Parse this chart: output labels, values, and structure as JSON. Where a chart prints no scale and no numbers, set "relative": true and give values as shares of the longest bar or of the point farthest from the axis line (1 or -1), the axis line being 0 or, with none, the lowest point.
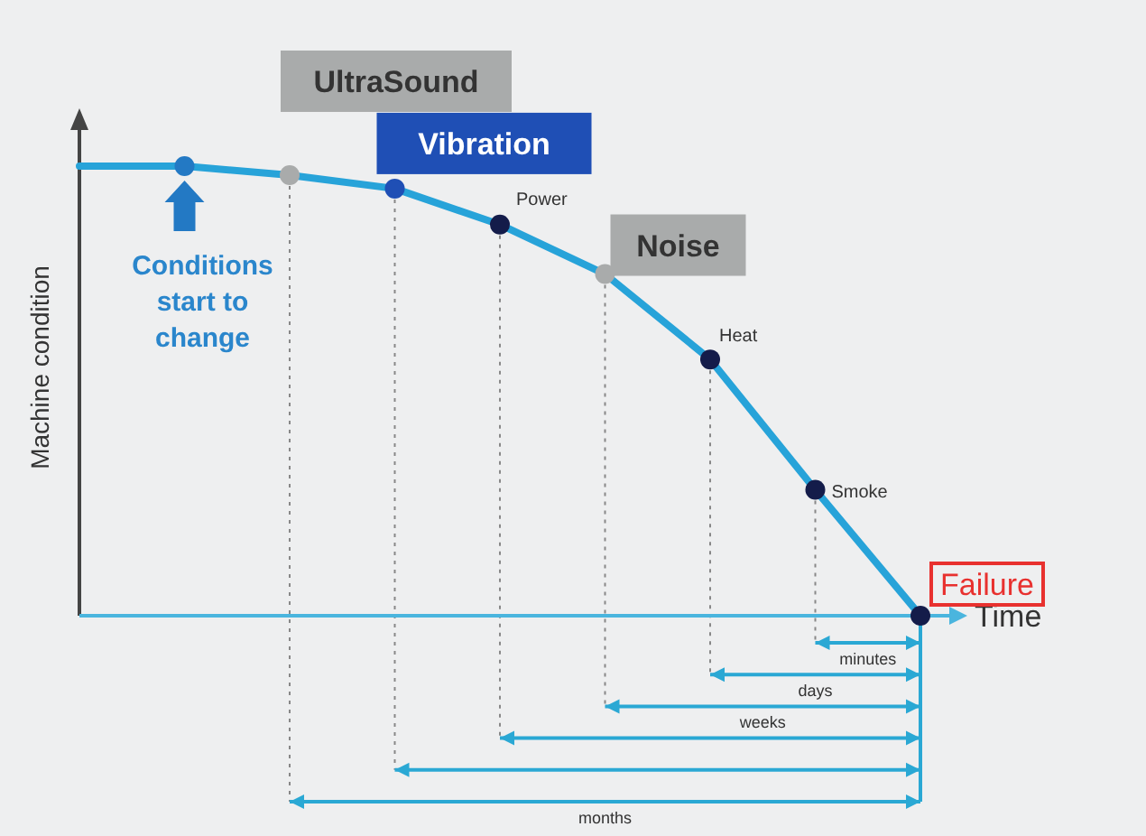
{
  "chart_data": {
    "type": "line",
    "relative": true,
    "xlabel": "Time",
    "ylabel": "Machine condition",
    "categories": [
      null,
      null,
      null,
      null,
      null,
      null,
      null,
      null,
      null
    ],
    "grid": "x",
    "series": [
      {
        "color": "#27a3d9",
        "marker": "circle",
        "line_style": "solid",
        "values": [
          1,
          1,
          0.98,
          0.95,
          0.87,
          0.76,
          0.57,
          0.28,
          0
        ],
        "colors": [
          null,
          "#2379c4",
          "#a9abab",
          "#1f4fb5",
          "#141c4a",
          "#a9abab",
          "#141c4a",
          "#141c4a",
          "#141c4a"
        ]
      }
    ],
    "annotations": [
      "Conditions start to change",
      "UltraSound",
      "Vibration",
      "Power",
      "Noise",
      "Heat",
      "Smoke",
      "Failure",
      "months",
      "weeks",
      "days",
      "minutes"
    ]
  }
}
